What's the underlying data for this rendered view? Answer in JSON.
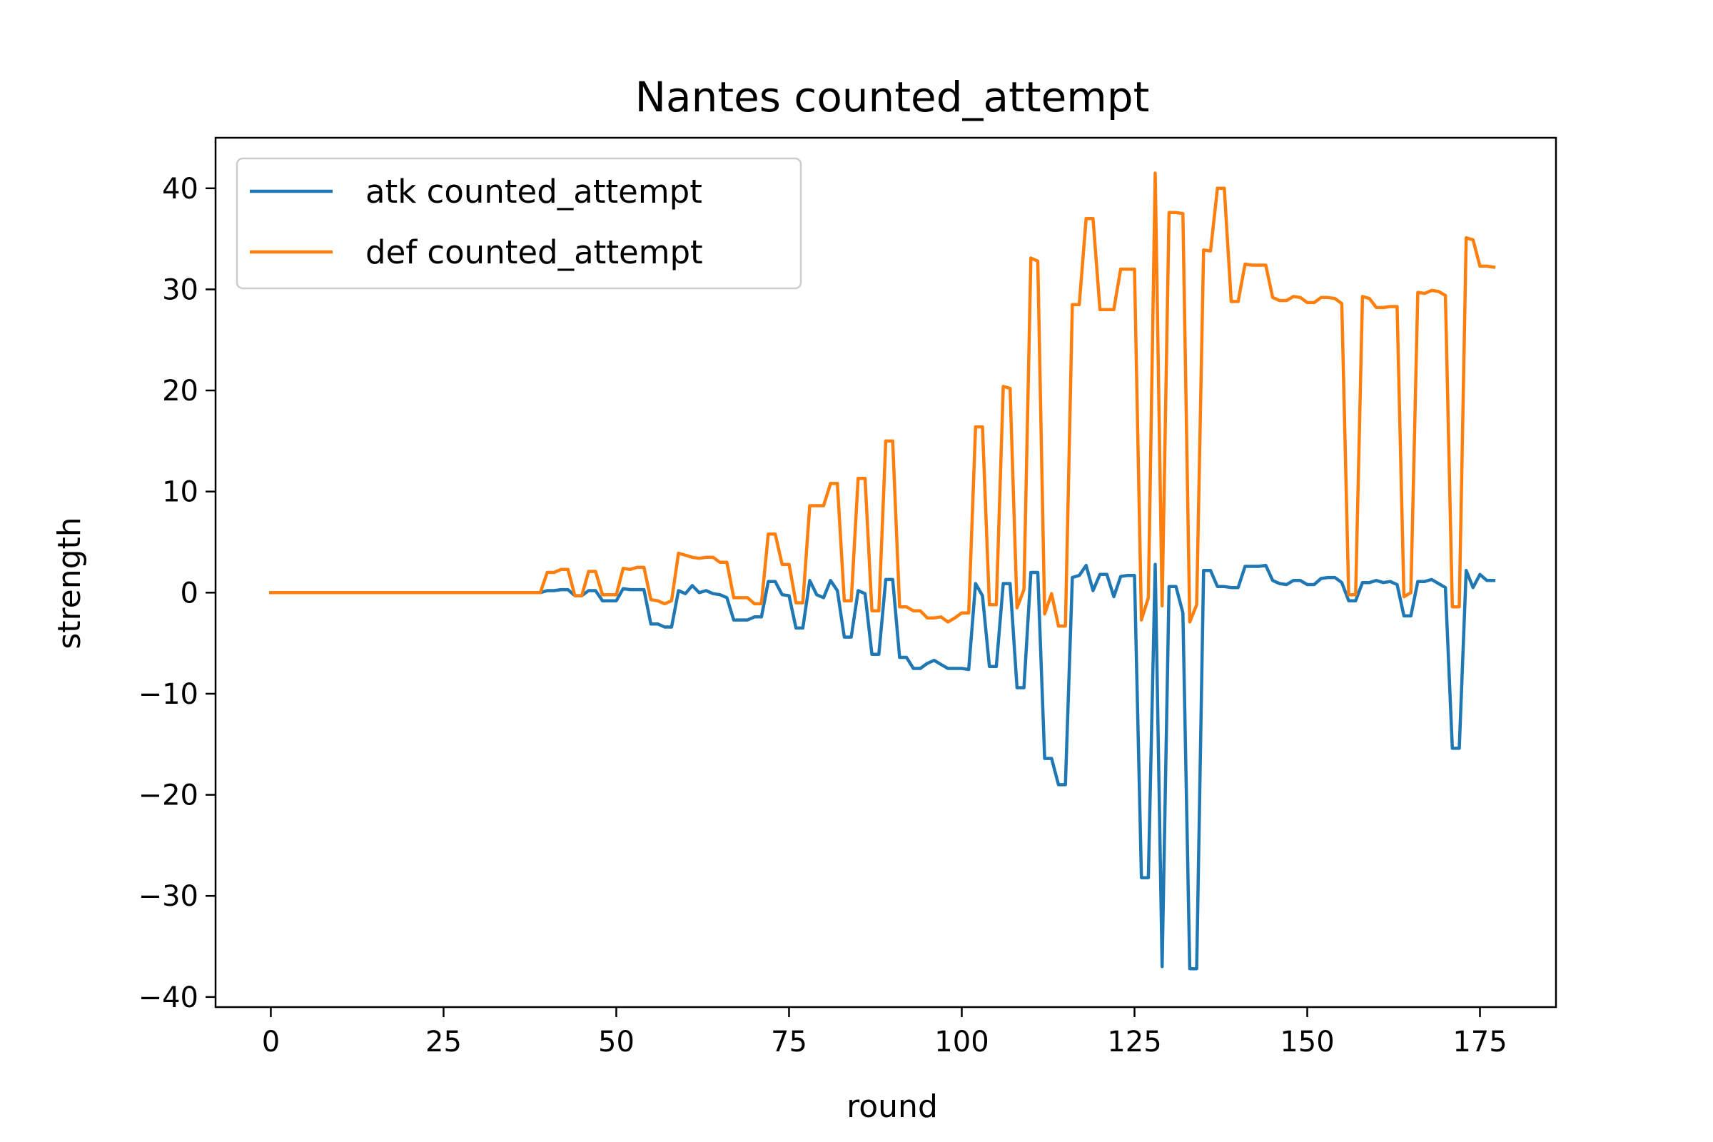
{
  "chart_data": {
    "type": "line",
    "title": "Nantes counted_attempt",
    "xlabel": "round",
    "ylabel": "strength",
    "xlim": [
      -8,
      186
    ],
    "ylim": [
      -41,
      45
    ],
    "xticks": [
      0,
      25,
      50,
      75,
      100,
      125,
      150,
      175
    ],
    "yticks": [
      -40,
      -30,
      -20,
      -10,
      0,
      10,
      20,
      30,
      40
    ],
    "ytick_labels": [
      "−40",
      "−30",
      "−20",
      "−10",
      "0",
      "10",
      "20",
      "30",
      "40"
    ],
    "grid": false,
    "legend_position": "upper-left",
    "series": [
      {
        "name": "atk counted_attempt",
        "color": "#1f77b4",
        "points": [
          [
            0,
            0
          ],
          [
            39,
            0
          ],
          [
            40,
            0.2
          ],
          [
            41,
            0.2
          ],
          [
            42,
            0.3
          ],
          [
            43,
            0.3
          ],
          [
            44,
            -0.3
          ],
          [
            45,
            -0.3
          ],
          [
            46,
            0.2
          ],
          [
            47,
            0.2
          ],
          [
            48,
            -0.8
          ],
          [
            49,
            -0.8
          ],
          [
            50,
            -0.8
          ],
          [
            51,
            0.4
          ],
          [
            52,
            0.3
          ],
          [
            53,
            0.3
          ],
          [
            54,
            0.3
          ],
          [
            55,
            -3.1
          ],
          [
            56,
            -3.1
          ],
          [
            57,
            -3.4
          ],
          [
            58,
            -3.4
          ],
          [
            59,
            0.2
          ],
          [
            60,
            -0.1
          ],
          [
            61,
            0.7
          ],
          [
            62,
            0
          ],
          [
            63,
            0.2
          ],
          [
            64,
            -0.1
          ],
          [
            65,
            -0.2
          ],
          [
            66,
            -0.5
          ],
          [
            67,
            -2.7
          ],
          [
            68,
            -2.7
          ],
          [
            69,
            -2.7
          ],
          [
            70,
            -2.4
          ],
          [
            71,
            -2.4
          ],
          [
            72,
            1.1
          ],
          [
            73,
            1.1
          ],
          [
            74,
            -0.2
          ],
          [
            75,
            -0.3
          ],
          [
            76,
            -3.5
          ],
          [
            77,
            -3.5
          ],
          [
            78,
            1.2
          ],
          [
            79,
            -0.2
          ],
          [
            80,
            -0.5
          ],
          [
            81,
            1.2
          ],
          [
            82,
            0.2
          ],
          [
            83,
            -4.4
          ],
          [
            84,
            -4.4
          ],
          [
            85,
            0.2
          ],
          [
            86,
            -0.1
          ],
          [
            87,
            -6.1
          ],
          [
            88,
            -6.1
          ],
          [
            89,
            1.3
          ],
          [
            90,
            1.3
          ],
          [
            91,
            -6.4
          ],
          [
            92,
            -6.4
          ],
          [
            93,
            -7.5
          ],
          [
            94,
            -7.5
          ],
          [
            95,
            -7
          ],
          [
            96,
            -6.7
          ],
          [
            97,
            -7.1
          ],
          [
            98,
            -7.5
          ],
          [
            99,
            -7.5
          ],
          [
            100,
            -7.5
          ],
          [
            101,
            -7.6
          ],
          [
            102,
            0.9
          ],
          [
            103,
            -0.3
          ],
          [
            104,
            -7.3
          ],
          [
            105,
            -7.3
          ],
          [
            106,
            0.9
          ],
          [
            107,
            0.9
          ],
          [
            108,
            -9.4
          ],
          [
            109,
            -9.4
          ],
          [
            110,
            2
          ],
          [
            111,
            2
          ],
          [
            112,
            -16.4
          ],
          [
            113,
            -16.4
          ],
          [
            114,
            -19
          ],
          [
            115,
            -19
          ],
          [
            116,
            1.5
          ],
          [
            117,
            1.7
          ],
          [
            118,
            2.7
          ],
          [
            119,
            0.2
          ],
          [
            120,
            1.8
          ],
          [
            121,
            1.8
          ],
          [
            122,
            -0.4
          ],
          [
            123,
            1.6
          ],
          [
            124,
            1.7
          ],
          [
            125,
            1.7
          ],
          [
            126,
            -28.2
          ],
          [
            127,
            -28.2
          ],
          [
            128,
            2.8
          ],
          [
            129,
            -37
          ],
          [
            130,
            0.6
          ],
          [
            131,
            0.6
          ],
          [
            132,
            -2
          ],
          [
            133,
            -37.2
          ],
          [
            134,
            -37.2
          ],
          [
            135,
            2.2
          ],
          [
            136,
            2.2
          ],
          [
            137,
            0.6
          ],
          [
            138,
            0.6
          ],
          [
            139,
            0.5
          ],
          [
            140,
            0.5
          ],
          [
            141,
            2.6
          ],
          [
            142,
            2.6
          ],
          [
            143,
            2.6
          ],
          [
            144,
            2.7
          ],
          [
            145,
            1.2
          ],
          [
            146,
            0.9
          ],
          [
            147,
            0.8
          ],
          [
            148,
            1.2
          ],
          [
            149,
            1.2
          ],
          [
            150,
            0.8
          ],
          [
            151,
            0.8
          ],
          [
            152,
            1.4
          ],
          [
            153,
            1.5
          ],
          [
            154,
            1.5
          ],
          [
            155,
            1.0
          ],
          [
            156,
            -0.8
          ],
          [
            157,
            -0.8
          ],
          [
            158,
            1
          ],
          [
            159,
            1
          ],
          [
            160,
            1.2
          ],
          [
            161,
            1
          ],
          [
            162,
            1.1
          ],
          [
            163,
            0.8
          ],
          [
            164,
            -2.3
          ],
          [
            165,
            -2.3
          ],
          [
            166,
            1.1
          ],
          [
            167,
            1.1
          ],
          [
            168,
            1.3
          ],
          [
            169,
            0.9
          ],
          [
            170,
            0.5
          ],
          [
            171,
            -15.4
          ],
          [
            172,
            -15.4
          ],
          [
            173,
            2.2
          ],
          [
            174,
            0.5
          ],
          [
            175,
            1.8
          ],
          [
            176,
            1.2
          ],
          [
            177,
            1.2
          ]
        ]
      },
      {
        "name": "def counted_attempt",
        "color": "#ff7f0e",
        "points": [
          [
            0,
            0
          ],
          [
            39,
            0
          ],
          [
            40,
            2
          ],
          [
            41,
            2
          ],
          [
            42,
            2.3
          ],
          [
            43,
            2.3
          ],
          [
            44,
            -0.3
          ],
          [
            45,
            -0.3
          ],
          [
            46,
            2.1
          ],
          [
            47,
            2.1
          ],
          [
            48,
            -0.2
          ],
          [
            49,
            -0.2
          ],
          [
            50,
            -0.2
          ],
          [
            51,
            2.4
          ],
          [
            52,
            2.3
          ],
          [
            53,
            2.5
          ],
          [
            54,
            2.5
          ],
          [
            55,
            -0.7
          ],
          [
            56,
            -0.8
          ],
          [
            57,
            -1.1
          ],
          [
            58,
            -0.8
          ],
          [
            59,
            3.9
          ],
          [
            60,
            3.7
          ],
          [
            61,
            3.5
          ],
          [
            62,
            3.4
          ],
          [
            63,
            3.5
          ],
          [
            64,
            3.5
          ],
          [
            65,
            3
          ],
          [
            66,
            3
          ],
          [
            67,
            -0.5
          ],
          [
            68,
            -0.5
          ],
          [
            69,
            -0.5
          ],
          [
            70,
            -1.1
          ],
          [
            71,
            -1.1
          ],
          [
            72,
            5.8
          ],
          [
            73,
            5.8
          ],
          [
            74,
            2.8
          ],
          [
            75,
            2.8
          ],
          [
            76,
            -1
          ],
          [
            77,
            -1
          ],
          [
            78,
            8.6
          ],
          [
            79,
            8.6
          ],
          [
            80,
            8.6
          ],
          [
            81,
            10.8
          ],
          [
            82,
            10.8
          ],
          [
            83,
            -0.8
          ],
          [
            84,
            -0.8
          ],
          [
            85,
            11.3
          ],
          [
            86,
            11.3
          ],
          [
            87,
            -1.8
          ],
          [
            88,
            -1.8
          ],
          [
            89,
            15
          ],
          [
            90,
            15
          ],
          [
            91,
            -1.4
          ],
          [
            92,
            -1.4
          ],
          [
            93,
            -1.8
          ],
          [
            94,
            -1.8
          ],
          [
            95,
            -2.5
          ],
          [
            96,
            -2.5
          ],
          [
            97,
            -2.4
          ],
          [
            98,
            -2.9
          ],
          [
            99,
            -2.5
          ],
          [
            100,
            -2
          ],
          [
            101,
            -2
          ],
          [
            102,
            16.4
          ],
          [
            103,
            16.4
          ],
          [
            104,
            -1.2
          ],
          [
            105,
            -1.2
          ],
          [
            106,
            20.4
          ],
          [
            107,
            20.2
          ],
          [
            108,
            -1.5
          ],
          [
            109,
            0.3
          ],
          [
            110,
            33.1
          ],
          [
            111,
            32.8
          ],
          [
            112,
            -2.1
          ],
          [
            113,
            -0.1
          ],
          [
            114,
            -3.3
          ],
          [
            115,
            -3.3
          ],
          [
            116,
            28.5
          ],
          [
            117,
            28.5
          ],
          [
            118,
            37
          ],
          [
            119,
            37
          ],
          [
            120,
            28
          ],
          [
            121,
            28
          ],
          [
            122,
            28
          ],
          [
            123,
            32
          ],
          [
            124,
            32
          ],
          [
            125,
            32
          ],
          [
            126,
            -2.7
          ],
          [
            127,
            -0.5
          ],
          [
            128,
            41.5
          ],
          [
            129,
            -1.3
          ],
          [
            130,
            37.6
          ],
          [
            131,
            37.6
          ],
          [
            132,
            37.5
          ],
          [
            133,
            -2.9
          ],
          [
            134,
            -1.2
          ],
          [
            135,
            33.9
          ],
          [
            136,
            33.8
          ],
          [
            137,
            40
          ],
          [
            138,
            40
          ],
          [
            139,
            28.8
          ],
          [
            140,
            28.8
          ],
          [
            141,
            32.5
          ],
          [
            142,
            32.4
          ],
          [
            143,
            32.4
          ],
          [
            144,
            32.4
          ],
          [
            145,
            29.2
          ],
          [
            146,
            28.9
          ],
          [
            147,
            28.9
          ],
          [
            148,
            29.3
          ],
          [
            149,
            29.2
          ],
          [
            150,
            28.7
          ],
          [
            151,
            28.7
          ],
          [
            152,
            29.2
          ],
          [
            153,
            29.2
          ],
          [
            154,
            29.1
          ],
          [
            155,
            28.6
          ],
          [
            156,
            -0.2
          ],
          [
            157,
            -0.2
          ],
          [
            158,
            29.3
          ],
          [
            159,
            29.1
          ],
          [
            160,
            28.2
          ],
          [
            161,
            28.2
          ],
          [
            162,
            28.3
          ],
          [
            163,
            28.3
          ],
          [
            164,
            -0.4
          ],
          [
            165,
            0
          ],
          [
            166,
            29.7
          ],
          [
            167,
            29.6
          ],
          [
            168,
            29.9
          ],
          [
            169,
            29.8
          ],
          [
            170,
            29.4
          ],
          [
            171,
            -1.4
          ],
          [
            172,
            -1.4
          ],
          [
            173,
            35.1
          ],
          [
            174,
            34.9
          ],
          [
            175,
            32.3
          ],
          [
            176,
            32.3
          ],
          [
            177,
            32.2
          ]
        ]
      }
    ]
  }
}
